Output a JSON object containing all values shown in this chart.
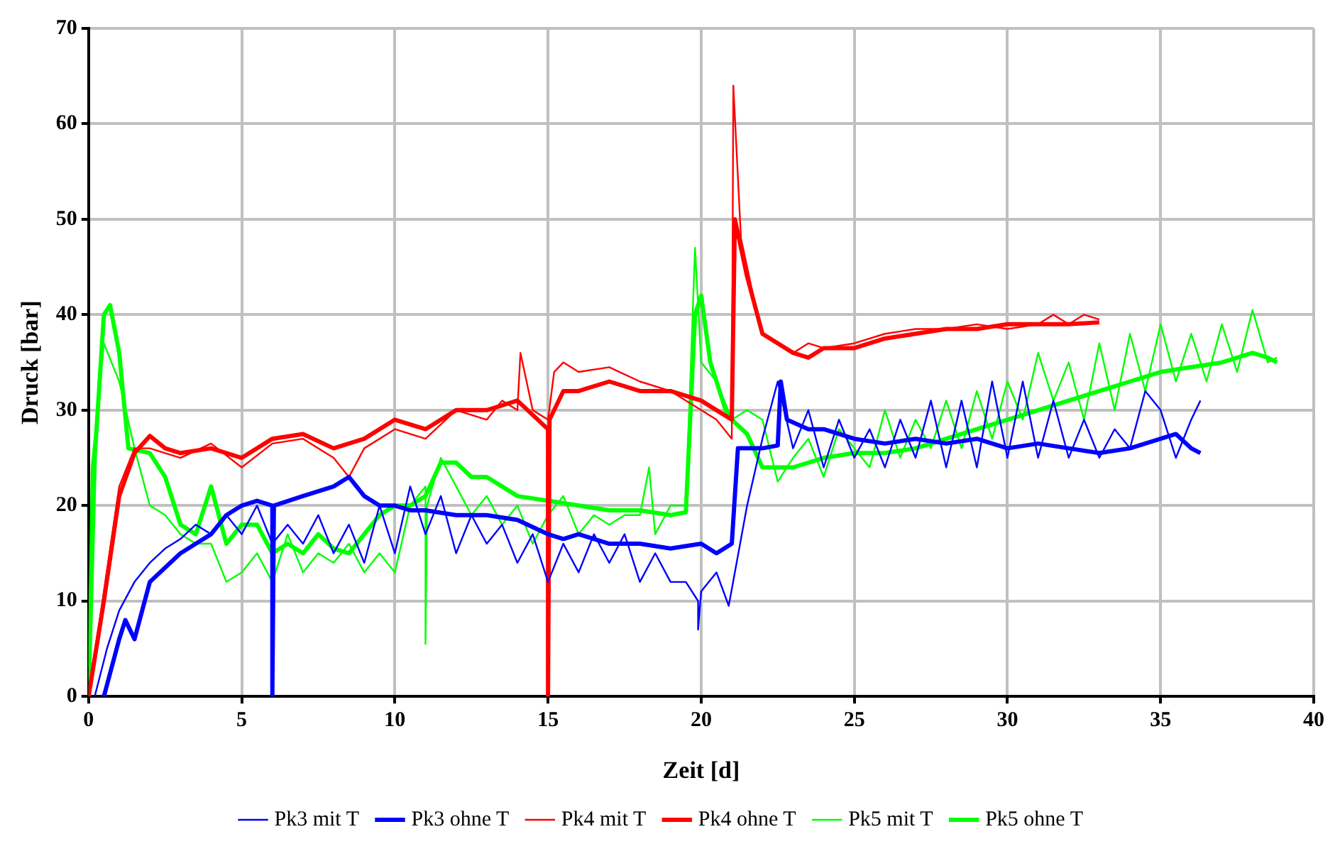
{
  "chart_data": {
    "type": "line",
    "xlabel": "Zeit [d]",
    "ylabel": "Druck [bar]",
    "xlim": [
      0,
      40
    ],
    "xticks": [
      0,
      5,
      10,
      15,
      20,
      25,
      30,
      35,
      40
    ],
    "ylim": [
      0,
      70
    ],
    "yticks": [
      0,
      10,
      20,
      30,
      40,
      50,
      60,
      70
    ],
    "grid": true,
    "legend": "bottom",
    "marker": "none",
    "line_style": "solid",
    "series": [
      {
        "name": "Pk3 mit T",
        "color": "#0000ff",
        "x": [
          0.2,
          0.6,
          1,
          1.5,
          2,
          2.5,
          3,
          3.5,
          4,
          4.5,
          5,
          5.5,
          6,
          6.5,
          7,
          7.5,
          8,
          8.5,
          9,
          9.5,
          10,
          10.5,
          11,
          11.5,
          12,
          12.5,
          13,
          13.5,
          14,
          14.5,
          15,
          15.5,
          16,
          16.5,
          17,
          17.5,
          18,
          18.5,
          19,
          19.5,
          19.9,
          19.9,
          20,
          20.5,
          20.9,
          21.5,
          22,
          22.5,
          23,
          23.5,
          24,
          24.5,
          25,
          25.5,
          26,
          26.5,
          27,
          27.5,
          28,
          28.5,
          29,
          29.5,
          30,
          30.5,
          31,
          31.5,
          32,
          32.5,
          33,
          33.5,
          34,
          34.5,
          35,
          35.5,
          36,
          36.3
        ],
        "values": [
          0,
          5,
          9,
          12,
          14,
          15.5,
          16.5,
          18,
          17,
          19,
          17,
          20,
          16,
          18,
          16,
          19,
          15,
          18,
          14,
          20,
          15,
          22,
          17,
          21,
          15,
          19,
          16,
          18,
          14,
          17,
          12,
          16,
          13,
          17,
          14,
          17,
          12,
          15,
          12,
          12,
          10,
          7,
          11,
          13,
          9.5,
          20,
          27,
          33,
          26,
          30,
          24,
          29,
          25,
          28,
          24,
          29,
          25,
          31,
          24,
          31,
          24,
          33,
          25,
          33,
          25,
          31,
          25,
          29,
          25,
          28,
          26,
          32,
          30,
          25,
          29,
          31
        ]
      },
      {
        "name": "Pk3 ohne T",
        "color": "#0000ff",
        "x": [
          0.5,
          1,
          1.2,
          1.5,
          2,
          3,
          3.5,
          4,
          4.5,
          5,
          5.5,
          6,
          6,
          6.05,
          7,
          8,
          8.5,
          9,
          9.5,
          10,
          10.5,
          11,
          12,
          13,
          14,
          15,
          15.5,
          16,
          17,
          18,
          19,
          20,
          20.5,
          21,
          21.2,
          22,
          22.5,
          22.6,
          22.8,
          23.5,
          24,
          25,
          26,
          27,
          28,
          29,
          30,
          31,
          32,
          33,
          34,
          35,
          35.5,
          36,
          36.3
        ],
        "values": [
          0,
          6,
          8,
          6,
          12,
          15,
          16,
          17,
          19,
          20,
          20.5,
          20,
          0,
          20,
          21,
          22,
          23,
          21,
          20,
          20,
          19.5,
          19.5,
          19,
          19,
          18.5,
          17,
          16.5,
          17,
          16,
          16,
          15.5,
          16,
          15,
          16,
          26,
          26,
          26.3,
          33,
          29,
          28,
          28,
          27,
          26.5,
          27,
          26.5,
          27,
          26,
          26.5,
          26,
          25.5,
          26,
          27,
          27.5,
          26,
          25.5
        ]
      },
      {
        "name": "Pk4 mit T",
        "color": "#ff0000",
        "x": [
          0,
          1,
          1.5,
          2,
          3,
          4,
          5,
          6,
          7,
          8,
          8.5,
          9,
          10,
          11,
          12,
          13,
          13.5,
          14,
          14.1,
          14.5,
          15,
          15.2,
          15.5,
          16,
          17,
          18,
          19,
          20,
          20.5,
          21,
          21.05,
          21.3,
          21.7,
          22,
          22.5,
          23,
          23.5,
          24,
          25,
          26,
          27,
          28,
          29,
          30,
          31,
          31.5,
          32,
          32.5,
          33
        ],
        "values": [
          0,
          22,
          26,
          26,
          25,
          26.5,
          24,
          26.5,
          27,
          25,
          23,
          26,
          28,
          27,
          30,
          29,
          31,
          30,
          36,
          30,
          29,
          34,
          35,
          34,
          34.5,
          33,
          32,
          30,
          29,
          27,
          64,
          48,
          42,
          38,
          37,
          36,
          37,
          36.5,
          37,
          38,
          38.5,
          38.5,
          39,
          38.5,
          39,
          40,
          39,
          40,
          39.5
        ]
      },
      {
        "name": "Pk4 ohne T",
        "color": "#ff0000",
        "x": [
          0,
          0.5,
          1,
          1.5,
          2,
          2.5,
          3,
          4,
          5,
          6,
          7,
          8,
          9,
          10,
          11,
          12,
          13,
          14,
          15,
          15,
          15.05,
          15.5,
          16,
          17,
          18,
          19,
          20,
          20.5,
          21,
          21.1,
          21.5,
          22,
          23,
          23.5,
          24,
          25,
          26,
          27,
          28,
          29,
          30,
          31,
          32,
          33
        ],
        "values": [
          0,
          10,
          21,
          25.5,
          27.3,
          26,
          25.5,
          26,
          25,
          27,
          27.5,
          26,
          27,
          29,
          28,
          30,
          30,
          31,
          28,
          0,
          29,
          32,
          32,
          33,
          32,
          32,
          31,
          30,
          29,
          50,
          44,
          38,
          36,
          35.5,
          36.5,
          36.5,
          37.5,
          38,
          38.5,
          38.5,
          39,
          39,
          39,
          39.2
        ]
      },
      {
        "name": "Pk5 mit T",
        "color": "#00ff00",
        "x": [
          0,
          0.1,
          0.5,
          1,
          1.5,
          2,
          2.5,
          3,
          3.5,
          4,
          4.5,
          5,
          5.5,
          6,
          6.5,
          7,
          7.5,
          8,
          8.5,
          9,
          9.5,
          10,
          10.5,
          11,
          11,
          11.05,
          11.5,
          12,
          12.5,
          13,
          13.5,
          14,
          14.5,
          15,
          15.5,
          16,
          16.5,
          17,
          17.5,
          18,
          18.3,
          18.5,
          19,
          19.5,
          19.8,
          20,
          20.5,
          21,
          21.5,
          22,
          22.5,
          23,
          23.5,
          24,
          24.5,
          25,
          25.5,
          26,
          26.5,
          27,
          27.5,
          28,
          28.5,
          29,
          29.5,
          30,
          30.5,
          31,
          31.5,
          32,
          32.5,
          33,
          33.5,
          34,
          34.5,
          35,
          35.5,
          36,
          36.5,
          37,
          37.5,
          38,
          38.5,
          38.8
        ],
        "values": [
          3,
          24,
          37,
          33,
          26,
          20,
          19,
          17,
          16,
          16,
          12,
          13,
          15,
          12,
          17,
          13,
          15,
          14,
          16,
          13,
          15,
          13,
          20,
          22,
          5.5,
          20,
          25,
          22,
          19,
          21,
          18,
          20,
          16,
          19,
          21,
          17,
          19,
          18,
          19,
          19,
          24,
          17,
          20,
          20,
          47,
          35,
          33,
          29,
          30,
          29,
          22.5,
          25,
          27,
          23,
          28,
          26,
          24,
          30,
          25,
          29,
          26,
          31,
          26,
          32,
          27,
          33,
          29,
          36,
          31,
          35,
          29,
          37,
          30,
          38,
          32,
          39,
          33,
          38,
          33,
          39,
          34,
          40.5,
          35,
          35.5
        ]
      },
      {
        "name": "Pk5 ohne T",
        "color": "#00ff00",
        "x": [
          0,
          0.2,
          0.5,
          0.7,
          1,
          1.3,
          2,
          2.5,
          3,
          3.5,
          4,
          4.5,
          5,
          5.5,
          6,
          6.5,
          7,
          7.5,
          8,
          8.5,
          9,
          9.5,
          10,
          10.5,
          11,
          11.5,
          12,
          12.5,
          13,
          13.5,
          14,
          15,
          16,
          17,
          18,
          19,
          19.5,
          19.8,
          20,
          20.3,
          20.8,
          21,
          21.5,
          22,
          23,
          24,
          25,
          26,
          27,
          28,
          29,
          30,
          31,
          32,
          33,
          34,
          35,
          36,
          37,
          38,
          38.5,
          38.8
        ],
        "values": [
          0,
          25,
          40,
          41,
          36,
          26,
          25.5,
          23,
          18,
          17,
          22,
          16,
          18,
          18,
          15,
          16,
          15,
          17,
          15.5,
          15,
          17,
          19,
          20,
          20,
          21,
          24.5,
          24.5,
          23,
          23,
          22,
          21,
          20.5,
          20,
          19.5,
          19.5,
          19,
          19.3,
          40,
          42,
          35,
          30,
          29,
          27.5,
          24,
          24,
          25,
          25.5,
          25.5,
          26,
          27,
          28,
          29,
          30,
          31,
          32,
          33,
          34,
          34.5,
          35,
          36,
          35.5,
          35
        ]
      }
    ]
  }
}
